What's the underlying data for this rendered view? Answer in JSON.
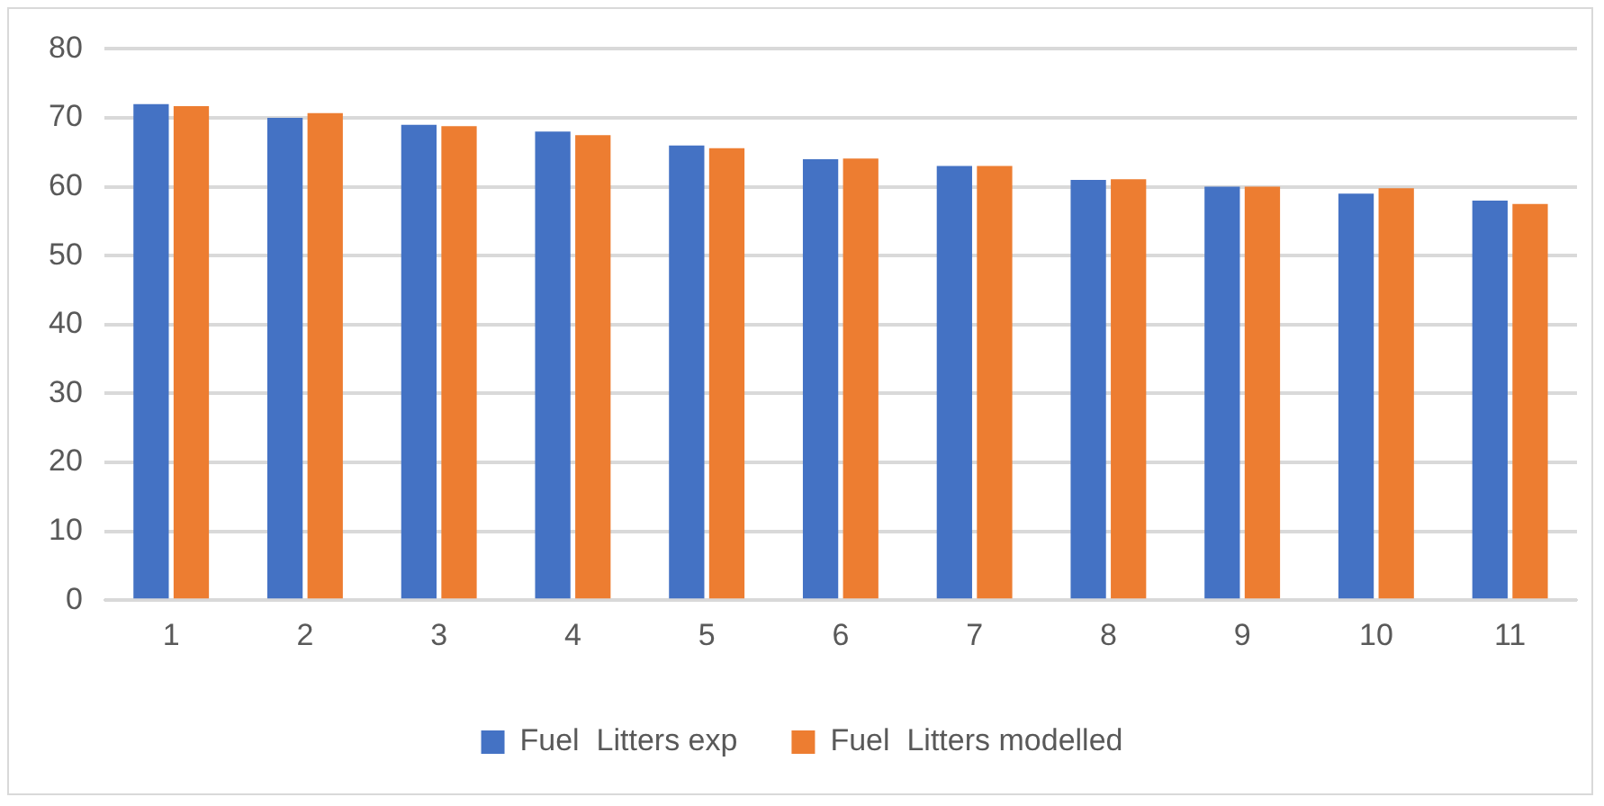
{
  "chart_data": {
    "type": "bar",
    "categories": [
      "1",
      "2",
      "3",
      "4",
      "5",
      "6",
      "7",
      "8",
      "9",
      "10",
      "11"
    ],
    "series": [
      {
        "name": "Fuel  Litters exp",
        "color": "#4472c4",
        "values": [
          72,
          70,
          69,
          68,
          66,
          64,
          63,
          61,
          60,
          59,
          58
        ]
      },
      {
        "name": "Fuel  Litters modelled",
        "color": "#ed7d31",
        "values": [
          71.7,
          70.7,
          68.8,
          67.5,
          65.6,
          64.1,
          63,
          61.1,
          60,
          59.8,
          57.5
        ]
      }
    ],
    "ylim": [
      0,
      80
    ],
    "yticks": [
      0,
      10,
      20,
      30,
      40,
      50,
      60,
      70,
      80
    ],
    "grid": "y",
    "legend": "bottom"
  }
}
